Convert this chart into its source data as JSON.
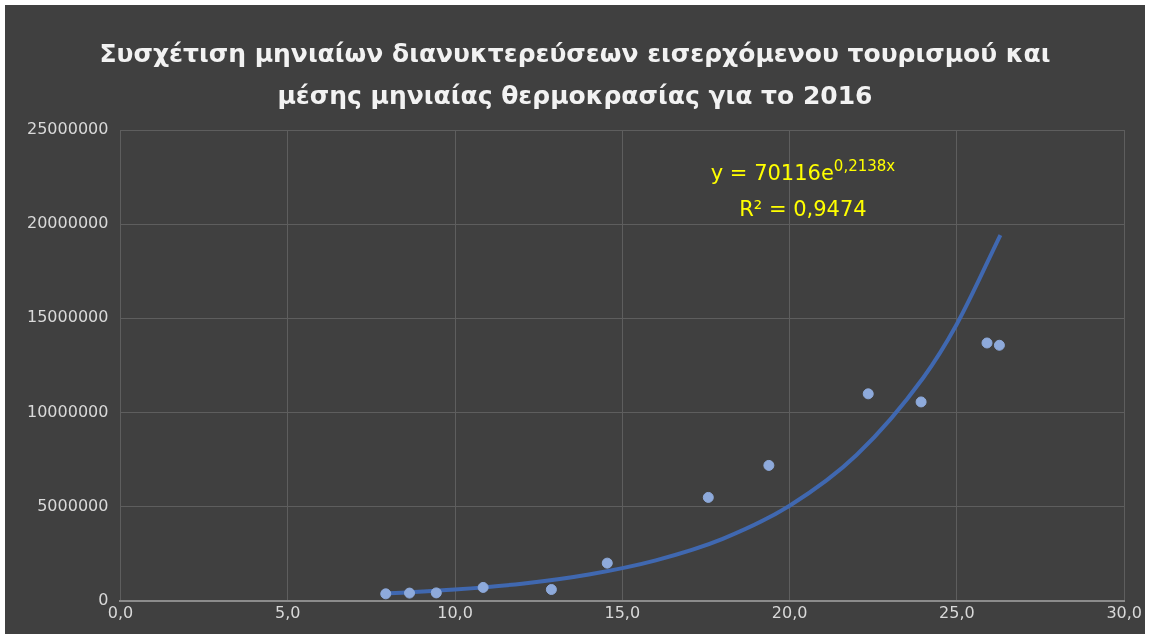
{
  "chart_data": {
    "type": "scatter",
    "title": "Συσχέτιση μηνιαίων διανυκτερεύσεων εισερχόμενου τουρισμού και μέσης μηνιαίας θερμοκρασίας για το 2016",
    "series": [
      {
        "color": "#8eaadb",
        "x": [
          7.93,
          8.64,
          9.44,
          10.84,
          12.88,
          14.55,
          17.57,
          19.38,
          22.35,
          23.93,
          25.9,
          26.27
        ],
        "values": [
          370000,
          410000,
          420000,
          710000,
          600000,
          2000000,
          5490000,
          7190000,
          10990000,
          10560000,
          13690000,
          13570000
        ]
      },
      {
        "type": "line",
        "marker": "none",
        "color": "#4068b0",
        "x": [
          7.93,
          10,
          12,
          14,
          16,
          18,
          20,
          22,
          24,
          25,
          26.3
        ],
        "values": [
          380000,
          600000,
          910000,
          1400000,
          2150000,
          3290000,
          5050000,
          7740000,
          11860000,
          14700000,
          19420000
        ]
      }
    ],
    "xlim": [
      0,
      30
    ],
    "xticks": [
      {
        "value": 0,
        "label": "0,0"
      },
      {
        "value": 5,
        "label": "5,0"
      },
      {
        "value": 10,
        "label": "10,0"
      },
      {
        "value": 15,
        "label": "15,0"
      },
      {
        "value": 20,
        "label": "20,0"
      },
      {
        "value": 25,
        "label": "25,0"
      },
      {
        "value": 30,
        "label": "30,0"
      }
    ],
    "ylim": [
      0,
      25000000
    ],
    "yticks": [
      0,
      5000000,
      10000000,
      15000000,
      20000000,
      25000000
    ],
    "annotations": [
      "y = 70116e$^{0,2138x}$",
      "R² = 0,9474"
    ],
    "grid": true,
    "legend": false,
    "marker": "circle"
  }
}
